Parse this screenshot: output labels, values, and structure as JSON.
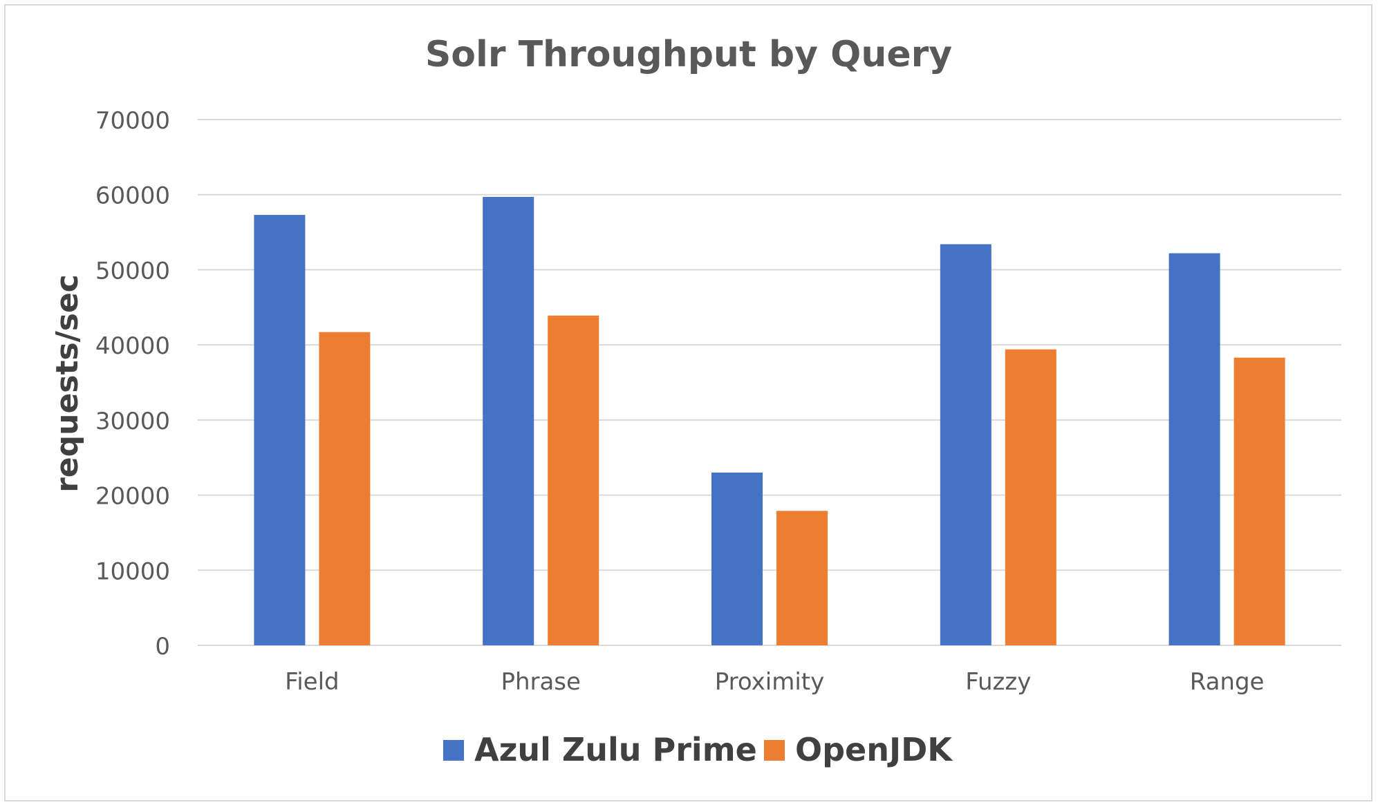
{
  "chart_data": {
    "type": "bar",
    "title": "Solr Throughput by Query",
    "xlabel": "",
    "ylabel": "requests/sec",
    "categories": [
      "Field",
      "Phrase",
      "Proximity",
      "Fuzzy",
      "Range"
    ],
    "series": [
      {
        "name": "Azul Zulu Prime",
        "color": "#4472c4",
        "values": [
          57300,
          59700,
          23000,
          53400,
          52200
        ]
      },
      {
        "name": "OpenJDK",
        "color": "#ed7d31",
        "values": [
          41700,
          43900,
          17900,
          39400,
          38300
        ]
      }
    ],
    "ylim": [
      0,
      70000
    ],
    "yticks": [
      0,
      10000,
      20000,
      30000,
      40000,
      50000,
      60000,
      70000
    ],
    "grid": true,
    "legend_position": "bottom"
  }
}
